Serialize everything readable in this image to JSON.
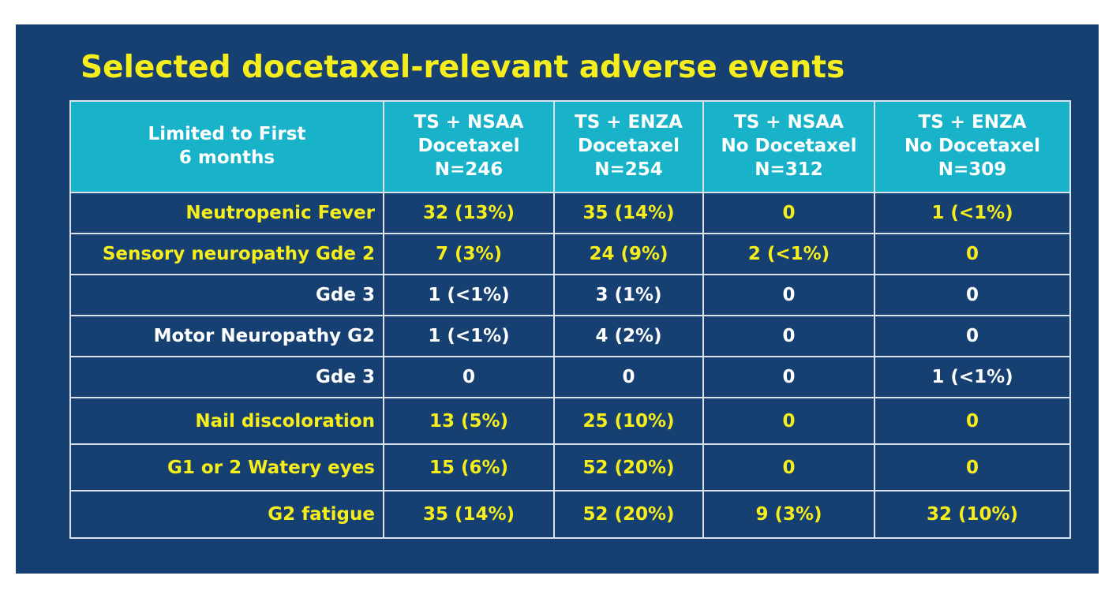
{
  "title": "Selected docetaxel-relevant adverse events",
  "colors": {
    "background": "#163f72",
    "header": "#19b3c9",
    "highlight_text": "#f6ee1c",
    "text": "#ffffff"
  },
  "table": {
    "corner_header": [
      "Limited to First",
      "6 months"
    ],
    "columns": [
      [
        "TS + NSAA",
        "Docetaxel",
        "N=246"
      ],
      [
        "TS + ENZA",
        "Docetaxel",
        "N=254"
      ],
      [
        "TS + NSAA",
        "No Docetaxel",
        "N=312"
      ],
      [
        "TS + ENZA",
        "No Docetaxel",
        "N=309"
      ]
    ],
    "rows": [
      {
        "label": "Neutropenic Fever",
        "highlight": true,
        "values": [
          "32 (13%)",
          "35 (14%)",
          "0",
          "1 (<1%)"
        ]
      },
      {
        "label": "Sensory neuropathy Gde 2",
        "highlight": true,
        "values": [
          "7 (3%)",
          "24 (9%)",
          "2 (<1%)",
          "0"
        ]
      },
      {
        "label": "Gde 3",
        "highlight": false,
        "values": [
          "1 (<1%)",
          "3 (1%)",
          "0",
          "0"
        ]
      },
      {
        "label": "Motor Neuropathy G2",
        "highlight": false,
        "values": [
          "1 (<1%)",
          "4 (2%)",
          "0",
          "0"
        ]
      },
      {
        "label": "Gde 3",
        "highlight": false,
        "values": [
          "0",
          "0",
          "0",
          "1 (<1%)"
        ]
      },
      {
        "label": "Nail discoloration",
        "highlight": true,
        "values": [
          "13 (5%)",
          "25 (10%)",
          "0",
          "0"
        ]
      },
      {
        "label": "G1 or 2 Watery eyes",
        "highlight": true,
        "values": [
          "15 (6%)",
          "52 (20%)",
          "0",
          "0"
        ]
      },
      {
        "label": "G2 fatigue",
        "highlight": true,
        "values": [
          "35 (14%)",
          "52 (20%)",
          "9 (3%)",
          "32 (10%)"
        ]
      }
    ]
  }
}
